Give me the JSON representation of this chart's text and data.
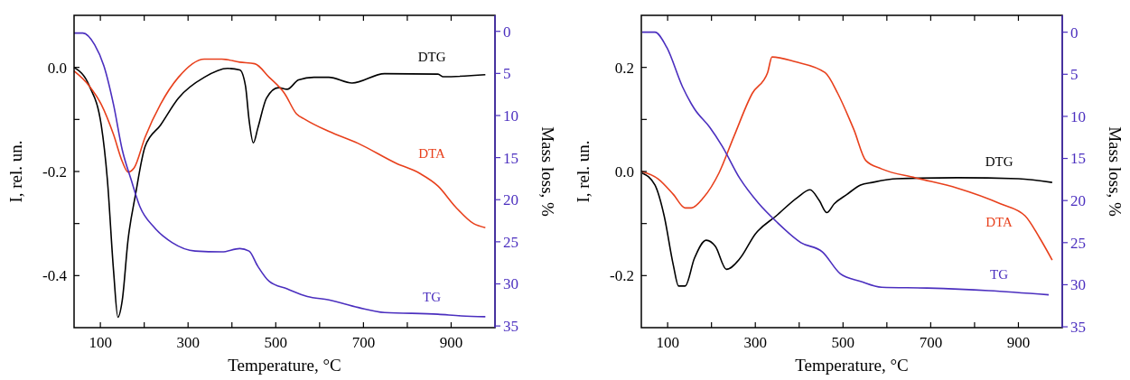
{
  "chart_data": [
    {
      "type": "line",
      "xlabel": "Temperature, °C",
      "ylabel": "I, rel. un.",
      "y2label": "Mass loss, %",
      "xlim": [
        40,
        1000
      ],
      "xticks": [
        100,
        {
          "value": 200,
          "label": null
        },
        300,
        {
          "value": 400,
          "label": null
        },
        500,
        {
          "value": 600,
          "label": null
        },
        700,
        {
          "value": 800,
          "label": null
        },
        900
      ],
      "ylim": [
        -0.5,
        0.1
      ],
      "yticks": [
        {
          "value": -0.4,
          "label": "-0.4"
        },
        {
          "value": -0.3,
          "label": null
        },
        {
          "value": -0.2,
          "label": "-0.2"
        },
        {
          "value": -0.1,
          "label": null
        },
        {
          "value": 0,
          "label": "0.0"
        }
      ],
      "y2lim": [
        35.2,
        -1.9
      ],
      "y2ticks": [
        0,
        5,
        10,
        15,
        20,
        25,
        30,
        35
      ],
      "grid": false,
      "series": [
        {
          "name": "DTG",
          "color": "#000000",
          "x": [
            40,
            75,
            102,
            116,
            130,
            140,
            150,
            163,
            180,
            202,
            237,
            278,
            337,
            390,
            418,
            431,
            439,
            449,
            459,
            479,
            506,
            526,
            552,
            587,
            621,
            674,
            748,
            870,
            882,
            978
          ],
          "values": [
            0,
            -0.036,
            -0.111,
            -0.216,
            -0.39,
            -0.48,
            -0.447,
            -0.332,
            -0.245,
            -0.152,
            -0.111,
            -0.059,
            -0.019,
            -0.002,
            -0.005,
            -0.036,
            -0.1,
            -0.145,
            -0.117,
            -0.059,
            -0.039,
            -0.042,
            -0.024,
            -0.019,
            -0.019,
            -0.03,
            -0.012,
            -0.013,
            -0.018,
            -0.014
          ]
        },
        {
          "name": "DTA",
          "color": "#e8401c",
          "x": [
            40,
            75,
            102,
            130,
            150,
            163,
            177,
            202,
            237,
            278,
            337,
            377,
            418,
            452,
            485,
            520,
            547,
            567,
            621,
            688,
            774,
            829,
            870,
            910,
            951,
            978
          ],
          "values": [
            -0.007,
            -0.036,
            -0.071,
            -0.129,
            -0.181,
            -0.201,
            -0.193,
            -0.134,
            -0.071,
            -0.019,
            0.016,
            0.016,
            0.01,
            0.007,
            -0.019,
            -0.05,
            -0.089,
            -0.1,
            -0.123,
            -0.146,
            -0.184,
            -0.204,
            -0.228,
            -0.268,
            -0.3,
            -0.308
          ]
        },
        {
          "name": "TG",
          "color": "#4b2fbf",
          "axis": "y2",
          "x": [
            40,
            60,
            87,
            108,
            130,
            150,
            170,
            190,
            223,
            264,
            316,
            377,
            418,
            439,
            459,
            485,
            526,
            572,
            621,
            688,
            748,
            870,
            923,
            978
          ],
          "values": [
            0.2,
            0.2,
            1.6,
            4.1,
            8.7,
            14.1,
            17.6,
            20.8,
            23.3,
            25.1,
            26.1,
            26.2,
            25.8,
            26.1,
            27.9,
            29.7,
            30.6,
            31.5,
            31.9,
            32.8,
            33.4,
            33.6,
            33.8,
            33.9
          ]
        }
      ]
    },
    {
      "type": "line",
      "xlabel": "Temperature, °C",
      "ylabel": "I, rel. un.",
      "y2label": "Mass loss, %",
      "xlim": [
        40,
        1000
      ],
      "xticks": [
        100,
        {
          "value": 200,
          "label": null
        },
        300,
        {
          "value": 400,
          "label": null
        },
        500,
        {
          "value": 600,
          "label": null
        },
        700,
        {
          "value": 800,
          "label": null
        },
        900
      ],
      "ylim": [
        -0.3,
        0.3
      ],
      "yticks": [
        {
          "value": -0.2,
          "label": "-0.2"
        },
        {
          "value": -0.1,
          "label": null
        },
        {
          "value": 0,
          "label": "0.0"
        },
        {
          "value": 0.1,
          "label": null
        },
        {
          "value": 0.2,
          "label": "0.2"
        }
      ],
      "y2lim": [
        35.1,
        -2
      ],
      "y2ticks": [
        0,
        5,
        10,
        15,
        20,
        25,
        30,
        35
      ],
      "grid": false,
      "series": [
        {
          "name": "DTG",
          "color": "#000000",
          "x": [
            42,
            71,
            92,
            113,
            125,
            140,
            161,
            188,
            209,
            234,
            265,
            300,
            348,
            396,
            425,
            446,
            463,
            480,
            509,
            540,
            567,
            623,
            761,
            900,
            977
          ],
          "values": [
            -0.003,
            -0.026,
            -0.085,
            -0.18,
            -0.22,
            -0.22,
            -0.167,
            -0.132,
            -0.144,
            -0.188,
            -0.167,
            -0.12,
            -0.085,
            -0.05,
            -0.035,
            -0.056,
            -0.079,
            -0.062,
            -0.044,
            -0.026,
            -0.021,
            -0.014,
            -0.012,
            -0.014,
            -0.021
          ]
        },
        {
          "name": "DTA",
          "color": "#e8401c",
          "x": [
            42,
            78,
            113,
            140,
            154,
            182,
            217,
            251,
            293,
            328,
            338,
            390,
            459,
            488,
            515,
            525,
            552,
            588,
            665,
            761,
            859,
            915,
            948,
            977
          ],
          "values": [
            0,
            -0.014,
            -0.044,
            -0.07,
            -0.07,
            -0.05,
            -0.003,
            0.067,
            0.15,
            0.19,
            0.22,
            0.211,
            0.19,
            0.15,
            0.1,
            0.08,
            0.021,
            0.005,
            -0.012,
            -0.032,
            -0.062,
            -0.085,
            -0.127,
            -0.17
          ]
        },
        {
          "name": "TG",
          "color": "#4b2fbf",
          "axis": "y2",
          "x": [
            42,
            71,
            98,
            134,
            161,
            196,
            224,
            265,
            307,
            348,
            404,
            453,
            494,
            540,
            588,
            692,
            832,
            969
          ],
          "values": [
            0,
            0,
            1.8,
            6.5,
            9.1,
            11.3,
            13.5,
            17.4,
            20.3,
            22.5,
            25,
            26.1,
            28.7,
            29.6,
            30.3,
            30.4,
            30.7,
            31.2
          ]
        }
      ]
    }
  ]
}
